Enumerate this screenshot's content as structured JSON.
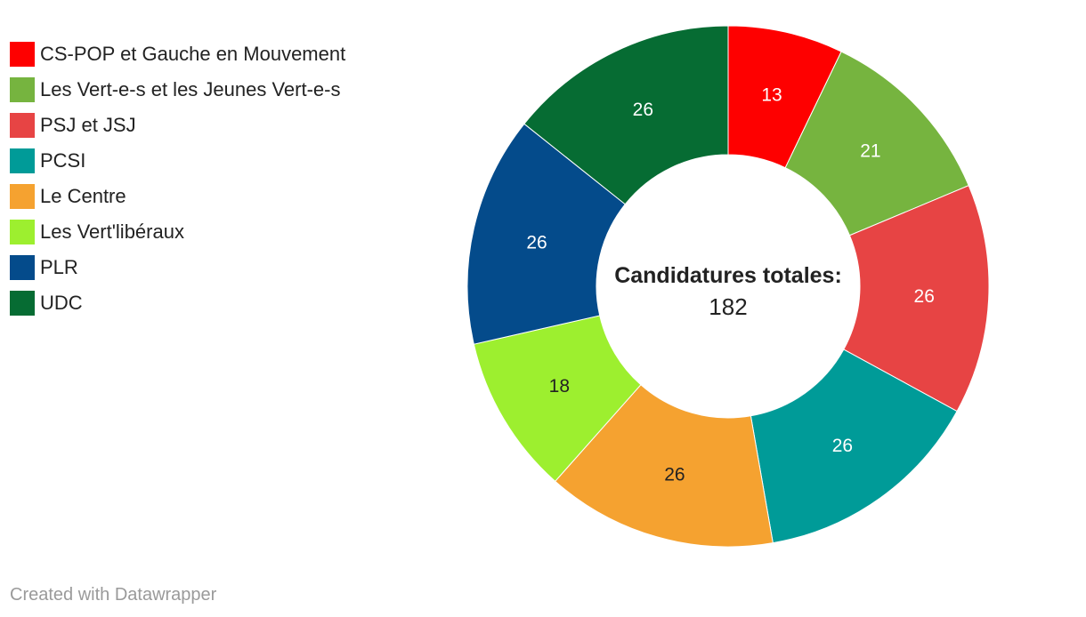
{
  "chart_data": {
    "type": "pie",
    "categories": [
      "CS-POP et Gauche en Mouvement",
      "Les Vert-e-s et les Jeunes Vert-e-s",
      "PSJ et JSJ",
      "PCSI",
      "Le Centre",
      "Les Vert'libéraux",
      "PLR",
      "UDC"
    ],
    "values": [
      13,
      21,
      26,
      26,
      26,
      18,
      26,
      26
    ],
    "colors": [
      "#fe0000",
      "#76b43f",
      "#e74444",
      "#009b98",
      "#f5a230",
      "#9def2f",
      "#044b8b",
      "#066c33"
    ],
    "label_colors": [
      "#ffffff",
      "#ffffff",
      "#ffffff",
      "#ffffff",
      "#222222",
      "#222222",
      "#ffffff",
      "#ffffff"
    ],
    "center_title": "Candidatures totales:",
    "center_value": "182",
    "legend_position": "top-left"
  },
  "footer": {
    "credit": "Created with Datawrapper"
  }
}
